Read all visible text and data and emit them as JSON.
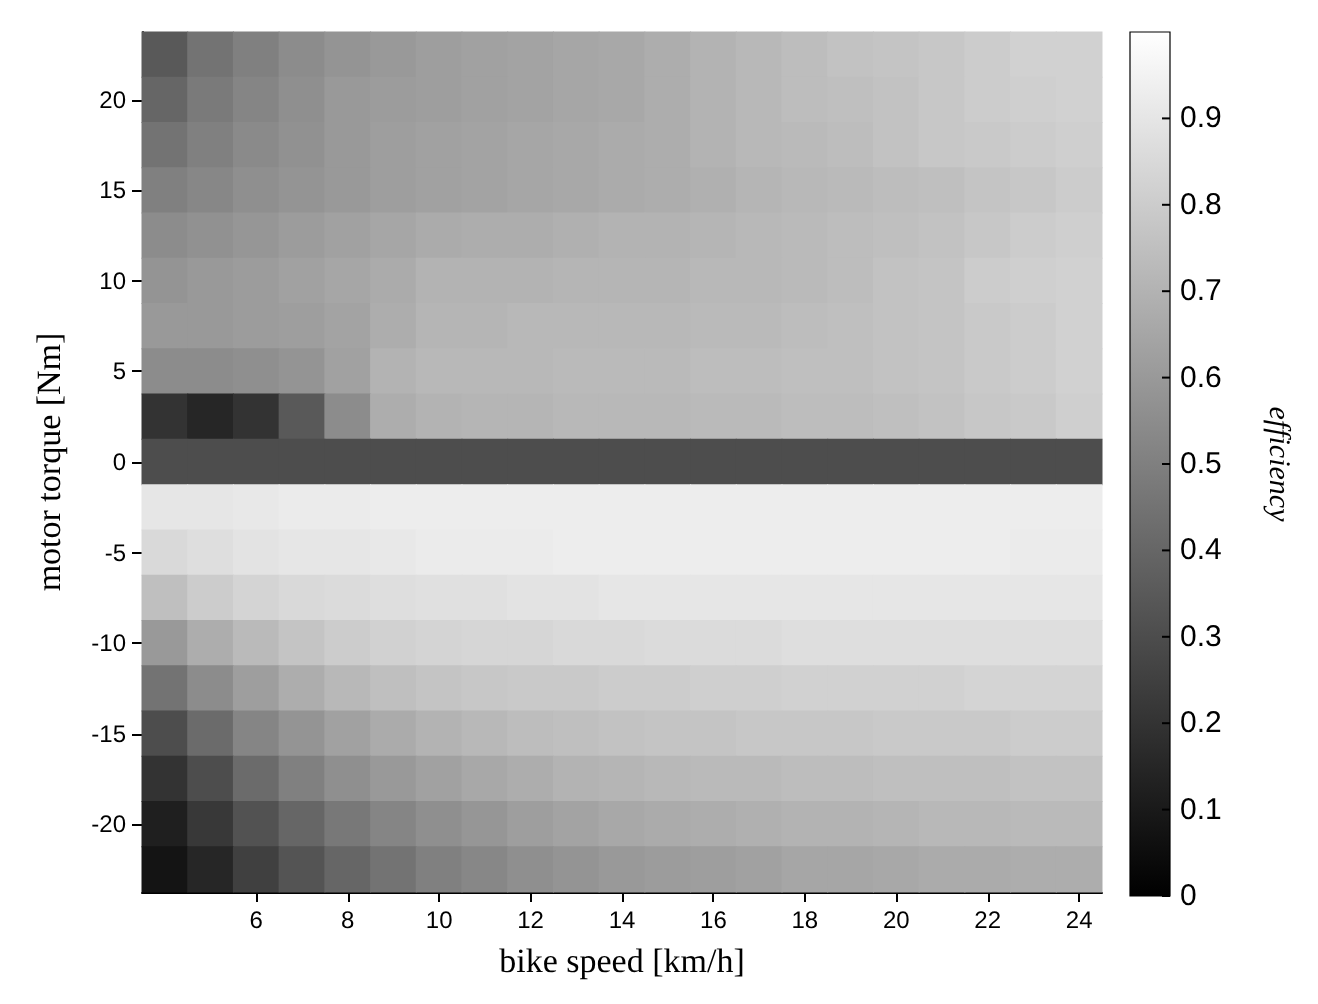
{
  "chart_data": {
    "type": "heatmap",
    "xlabel": "bike speed [km/h]",
    "ylabel": "motor torque [Nm]",
    "clabel": "efficiency",
    "categories": [
      null,
      null,
      "6",
      null,
      "8",
      null,
      "10",
      null,
      "12",
      null,
      "14",
      null,
      "16",
      null,
      "18",
      null,
      "20",
      null,
      "22",
      null,
      "24"
    ],
    "y_categories": [
      null,
      "20",
      null,
      "15",
      null,
      "10",
      null,
      "5",
      null,
      "0",
      null,
      "-5",
      null,
      "-10",
      null,
      "-15",
      null,
      "-20",
      null
    ],
    "cells": [
      [
        0.35,
        0.45,
        0.5,
        0.55,
        0.58,
        0.6,
        0.62,
        0.63,
        0.64,
        0.65,
        0.66,
        0.68,
        0.7,
        0.72,
        0.74,
        0.76,
        0.77,
        0.78,
        0.8,
        0.82,
        0.82
      ],
      [
        0.4,
        0.48,
        0.52,
        0.56,
        0.6,
        0.61,
        0.62,
        0.63,
        0.64,
        0.65,
        0.66,
        0.68,
        0.7,
        0.72,
        0.74,
        0.75,
        0.76,
        0.78,
        0.8,
        0.81,
        0.82
      ],
      [
        0.45,
        0.5,
        0.54,
        0.57,
        0.6,
        0.62,
        0.63,
        0.64,
        0.65,
        0.66,
        0.67,
        0.68,
        0.7,
        0.72,
        0.73,
        0.74,
        0.76,
        0.78,
        0.79,
        0.8,
        0.81
      ],
      [
        0.5,
        0.53,
        0.56,
        0.58,
        0.6,
        0.62,
        0.63,
        0.64,
        0.65,
        0.66,
        0.67,
        0.68,
        0.69,
        0.71,
        0.72,
        0.73,
        0.74,
        0.75,
        0.77,
        0.78,
        0.8
      ],
      [
        0.55,
        0.57,
        0.59,
        0.61,
        0.63,
        0.65,
        0.67,
        0.68,
        0.68,
        0.69,
        0.7,
        0.7,
        0.71,
        0.72,
        0.73,
        0.74,
        0.75,
        0.76,
        0.78,
        0.8,
        0.81
      ],
      [
        0.58,
        0.6,
        0.61,
        0.63,
        0.65,
        0.67,
        0.7,
        0.7,
        0.7,
        0.71,
        0.71,
        0.71,
        0.72,
        0.72,
        0.73,
        0.74,
        0.76,
        0.77,
        0.8,
        0.81,
        0.82
      ],
      [
        0.6,
        0.6,
        0.61,
        0.62,
        0.64,
        0.68,
        0.71,
        0.71,
        0.72,
        0.72,
        0.72,
        0.72,
        0.73,
        0.73,
        0.74,
        0.75,
        0.76,
        0.77,
        0.79,
        0.8,
        0.82
      ],
      [
        0.55,
        0.55,
        0.56,
        0.58,
        0.63,
        0.7,
        0.72,
        0.72,
        0.72,
        0.73,
        0.73,
        0.73,
        0.74,
        0.74,
        0.75,
        0.75,
        0.76,
        0.77,
        0.79,
        0.8,
        0.82
      ],
      [
        0.2,
        0.15,
        0.2,
        0.35,
        0.55,
        0.68,
        0.7,
        0.71,
        0.71,
        0.72,
        0.72,
        0.72,
        0.73,
        0.73,
        0.74,
        0.74,
        0.75,
        0.76,
        0.78,
        0.79,
        0.81
      ],
      [
        0.3,
        0.3,
        0.3,
        0.3,
        0.3,
        0.3,
        0.3,
        0.3,
        0.3,
        0.3,
        0.3,
        0.3,
        0.3,
        0.3,
        0.3,
        0.3,
        0.3,
        0.3,
        0.3,
        0.3,
        0.3
      ],
      [
        0.9,
        0.9,
        0.91,
        0.92,
        0.92,
        0.93,
        0.93,
        0.93,
        0.93,
        0.93,
        0.93,
        0.93,
        0.93,
        0.93,
        0.93,
        0.93,
        0.93,
        0.93,
        0.93,
        0.93,
        0.93
      ],
      [
        0.85,
        0.87,
        0.89,
        0.9,
        0.9,
        0.91,
        0.92,
        0.92,
        0.92,
        0.93,
        0.93,
        0.93,
        0.93,
        0.93,
        0.93,
        0.93,
        0.93,
        0.93,
        0.93,
        0.92,
        0.92
      ],
      [
        0.75,
        0.8,
        0.83,
        0.85,
        0.86,
        0.87,
        0.88,
        0.88,
        0.89,
        0.89,
        0.9,
        0.9,
        0.9,
        0.9,
        0.9,
        0.9,
        0.9,
        0.9,
        0.9,
        0.9,
        0.9
      ],
      [
        0.6,
        0.68,
        0.73,
        0.77,
        0.8,
        0.82,
        0.83,
        0.84,
        0.84,
        0.85,
        0.85,
        0.86,
        0.86,
        0.86,
        0.87,
        0.87,
        0.87,
        0.87,
        0.87,
        0.87,
        0.87
      ],
      [
        0.45,
        0.55,
        0.62,
        0.68,
        0.72,
        0.75,
        0.77,
        0.78,
        0.79,
        0.79,
        0.8,
        0.8,
        0.81,
        0.81,
        0.82,
        0.82,
        0.82,
        0.82,
        0.83,
        0.83,
        0.83
      ],
      [
        0.3,
        0.42,
        0.52,
        0.58,
        0.63,
        0.67,
        0.7,
        0.72,
        0.74,
        0.75,
        0.76,
        0.77,
        0.77,
        0.78,
        0.78,
        0.78,
        0.79,
        0.79,
        0.79,
        0.8,
        0.8
      ],
      [
        0.2,
        0.3,
        0.42,
        0.5,
        0.56,
        0.6,
        0.63,
        0.66,
        0.68,
        0.7,
        0.71,
        0.72,
        0.73,
        0.73,
        0.74,
        0.74,
        0.75,
        0.75,
        0.75,
        0.76,
        0.76
      ],
      [
        0.12,
        0.22,
        0.32,
        0.4,
        0.47,
        0.52,
        0.56,
        0.59,
        0.62,
        0.64,
        0.66,
        0.67,
        0.68,
        0.69,
        0.7,
        0.7,
        0.71,
        0.72,
        0.72,
        0.73,
        0.73
      ],
      [
        0.08,
        0.15,
        0.25,
        0.33,
        0.4,
        0.45,
        0.5,
        0.53,
        0.56,
        0.58,
        0.6,
        0.61,
        0.62,
        0.63,
        0.65,
        0.65,
        0.66,
        0.67,
        0.67,
        0.68,
        0.68
      ]
    ],
    "clim": [
      0,
      1
    ],
    "cticks": [
      0,
      0.1,
      0.2,
      0.3,
      0.4,
      0.5,
      0.6,
      0.7,
      0.8,
      0.9
    ]
  }
}
